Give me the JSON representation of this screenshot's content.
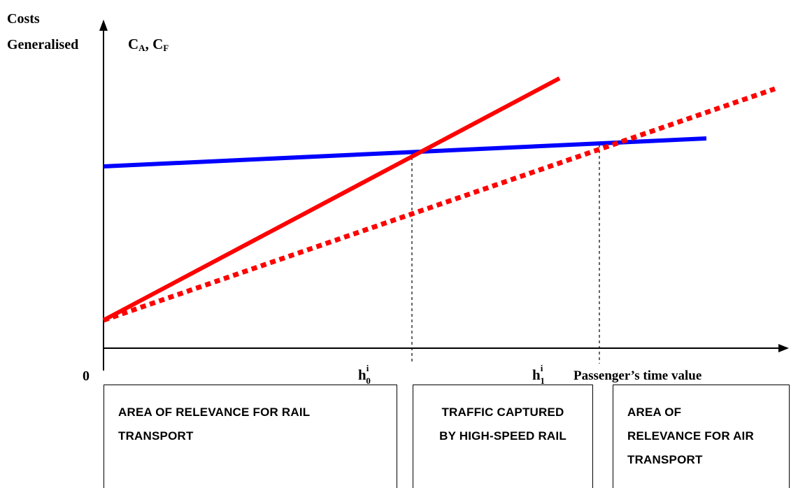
{
  "axes": {
    "y_label_line1": "Costs",
    "y_label_line2": "Generalised",
    "y_symbols": {
      "a_main": "C",
      "a_sub": "A",
      "sep": ", ",
      "f_main": "C",
      "f_sub": "F"
    },
    "origin_label": "0",
    "x_label": "Passenger’s time value",
    "h0": {
      "main": "h",
      "sup": "i",
      "sub": "0"
    },
    "h1": {
      "main": "h",
      "sup": "i",
      "sub": "1"
    }
  },
  "colors": {
    "air_line": "#0000ff",
    "rail_line": "#ff0000",
    "axis": "#000000"
  },
  "boxes": [
    {
      "lines": [
        "AREA OF RELEVANCE FOR RAIL",
        "TRANSPORT"
      ]
    },
    {
      "lines": [
        "TRAFFIC CAPTURED",
        "BY HIGH-SPEED RAIL"
      ]
    },
    {
      "lines": [
        "AREA OF",
        "RELEVANCE FOR AIR",
        "TRANSPORT"
      ]
    }
  ]
}
